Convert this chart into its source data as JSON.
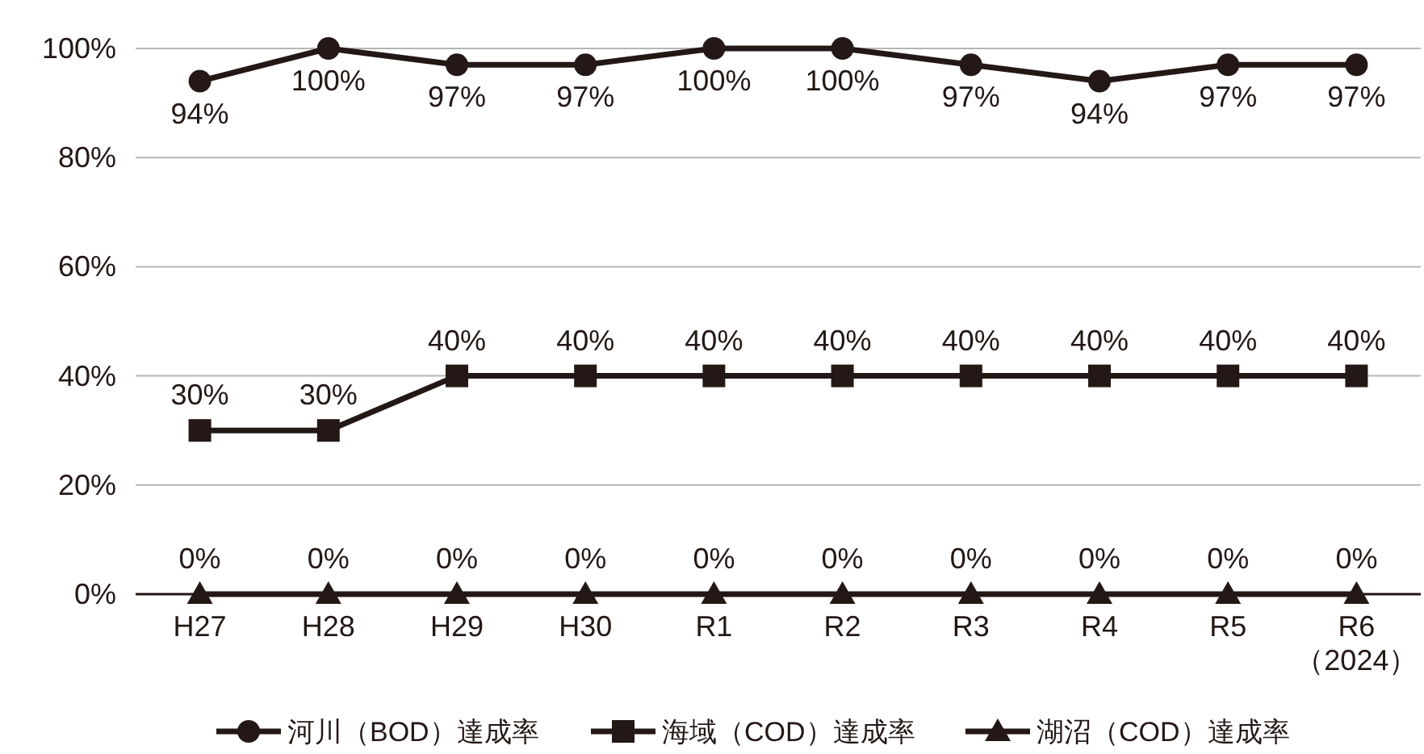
{
  "chart_data": {
    "type": "line",
    "categories": [
      "H27",
      "H28",
      "H29",
      "H30",
      "R1",
      "R2",
      "R3",
      "R4",
      "R5",
      "R6\n（2024）"
    ],
    "series": [
      {
        "name": "河川（BOD）達成率",
        "color": "#231815",
        "marker": "circle",
        "values": [
          94,
          100,
          97,
          97,
          100,
          100,
          97,
          94,
          97,
          97
        ],
        "value_labels": [
          "94%",
          "100%",
          "97%",
          "97%",
          "100%",
          "100%",
          "97%",
          "94%",
          "97%",
          "97%"
        ]
      },
      {
        "name": "海域（COD）達成率",
        "color": "#231815",
        "marker": "square",
        "values": [
          30,
          30,
          40,
          40,
          40,
          40,
          40,
          40,
          40,
          40
        ],
        "value_labels": [
          "30%",
          "30%",
          "40%",
          "40%",
          "40%",
          "40%",
          "40%",
          "40%",
          "40%",
          "40%"
        ]
      },
      {
        "name": "湖沼（COD）達成率",
        "color": "#231815",
        "marker": "triangle",
        "values": [
          0,
          0,
          0,
          0,
          0,
          0,
          0,
          0,
          0,
          0
        ],
        "value_labels": [
          "0%",
          "0%",
          "0%",
          "0%",
          "0%",
          "0%",
          "0%",
          "0%",
          "0%",
          "0%"
        ]
      }
    ],
    "ylim": [
      0,
      100
    ],
    "yticks": [
      {
        "value": 0,
        "label": "0%"
      },
      {
        "value": 20,
        "label": "20%"
      },
      {
        "value": 40,
        "label": "40%"
      },
      {
        "value": 60,
        "label": "60%"
      },
      {
        "value": 80,
        "label": "80%"
      },
      {
        "value": 100,
        "label": "100%"
      }
    ],
    "grid": "y",
    "legend": "bottom",
    "line_style": "solid"
  }
}
